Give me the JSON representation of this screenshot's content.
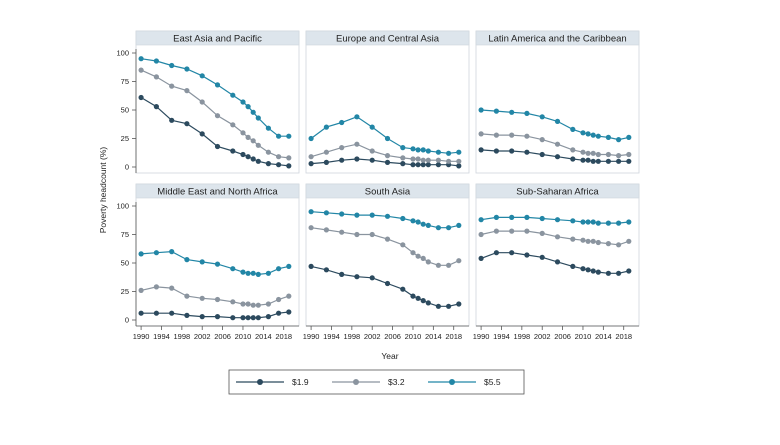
{
  "chart_data": {
    "type": "line",
    "ylabel": "Poverty headcount (%)",
    "xlabel": "Year",
    "ylim": [
      0,
      100
    ],
    "yticks": [
      0,
      25,
      50,
      75,
      100
    ],
    "xticks": [
      1990,
      1994,
      1998,
      2002,
      2006,
      2010,
      2014,
      2018
    ],
    "x": [
      1990,
      1993,
      1996,
      1999,
      2002,
      2005,
      2008,
      2010,
      2011,
      2012,
      2013,
      2015,
      2017,
      2019
    ],
    "series_meta": [
      {
        "name": "$1.9",
        "color": "#2c4a5e"
      },
      {
        "name": "$3.2",
        "color": "#8a949f"
      },
      {
        "name": "$5.5",
        "color": "#2286a6"
      }
    ],
    "legend_position": "bottom",
    "panels": [
      {
        "title": "East Asia and Pacific",
        "series": [
          {
            "name": "$1.9",
            "values": [
              61,
              53,
              41,
              38,
              29,
              18,
              14,
              11,
              9,
              7,
              5,
              3,
              2,
              1
            ]
          },
          {
            "name": "$3.2",
            "values": [
              85,
              79,
              71,
              67,
              57,
              45,
              37,
              30,
              26,
              23,
              19,
              13,
              9,
              8
            ]
          },
          {
            "name": "$5.5",
            "values": [
              95,
              93,
              89,
              86,
              80,
              72,
              63,
              57,
              53,
              48,
              43,
              34,
              27,
              27
            ]
          }
        ]
      },
      {
        "title": "Europe and Central Asia",
        "series": [
          {
            "name": "$1.9",
            "values": [
              3,
              4,
              6,
              7,
              6,
              4,
              3,
              2,
              2,
              2,
              2,
              2,
              2,
              1
            ]
          },
          {
            "name": "$3.2",
            "values": [
              9,
              13,
              17,
              20,
              14,
              10,
              8,
              7,
              7,
              6,
              6,
              6,
              5,
              5
            ]
          },
          {
            "name": "$5.5",
            "values": [
              25,
              35,
              39,
              44,
              35,
              25,
              17,
              16,
              15,
              15,
              14,
              13,
              12,
              13
            ]
          }
        ]
      },
      {
        "title": "Latin America and the Caribbean",
        "series": [
          {
            "name": "$1.9",
            "values": [
              15,
              14,
              14,
              13,
              11,
              9,
              7,
              6,
              6,
              5,
              5,
              5,
              5,
              5
            ]
          },
          {
            "name": "$3.2",
            "values": [
              29,
              28,
              28,
              27,
              24,
              20,
              15,
              13,
              12,
              12,
              11,
              11,
              10,
              11
            ]
          },
          {
            "name": "$5.5",
            "values": [
              50,
              49,
              48,
              47,
              44,
              40,
              33,
              30,
              29,
              28,
              27,
              26,
              24,
              26
            ]
          }
        ]
      },
      {
        "title": "Middle East and North Africa",
        "series": [
          {
            "name": "$1.9",
            "values": [
              6,
              6,
              6,
              4,
              3,
              3,
              2,
              2,
              2,
              2,
              2,
              3,
              6,
              7
            ]
          },
          {
            "name": "$3.2",
            "values": [
              26,
              29,
              28,
              21,
              19,
              18,
              16,
              14,
              14,
              13,
              13,
              14,
              18,
              21
            ]
          },
          {
            "name": "$5.5",
            "values": [
              58,
              59,
              60,
              53,
              51,
              49,
              45,
              42,
              41,
              41,
              40,
              41,
              45,
              47
            ]
          }
        ]
      },
      {
        "title": "South Asia",
        "series": [
          {
            "name": "$1.9",
            "values": [
              47,
              44,
              40,
              38,
              37,
              32,
              27,
              21,
              19,
              17,
              15,
              12,
              12,
              14
            ]
          },
          {
            "name": "$3.2",
            "values": [
              81,
              79,
              77,
              75,
              75,
              71,
              66,
              59,
              56,
              54,
              51,
              48,
              48,
              52
            ]
          },
          {
            "name": "$5.5",
            "values": [
              95,
              94,
              93,
              92,
              92,
              91,
              89,
              87,
              86,
              84,
              83,
              81,
              81,
              83
            ]
          }
        ]
      },
      {
        "title": "Sub-Saharan Africa",
        "series": [
          {
            "name": "$1.9",
            "values": [
              54,
              59,
              59,
              57,
              55,
              51,
              47,
              45,
              44,
              43,
              42,
              41,
              41,
              43
            ]
          },
          {
            "name": "$3.2",
            "values": [
              75,
              78,
              78,
              78,
              76,
              73,
              71,
              70,
              69,
              69,
              68,
              67,
              66,
              69
            ]
          },
          {
            "name": "$5.5",
            "values": [
              88,
              90,
              90,
              90,
              89,
              88,
              87,
              86,
              86,
              86,
              85,
              85,
              85,
              86
            ]
          }
        ]
      }
    ]
  }
}
